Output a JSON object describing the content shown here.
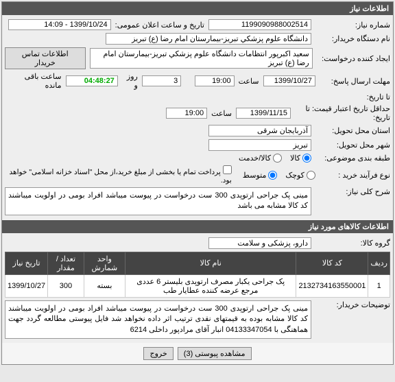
{
  "panel": {
    "title": "اطلاعات نیاز"
  },
  "header": {
    "req_no_label": "شماره نیاز:",
    "req_no": "1199090988002514",
    "pub_date_label": "تاریخ و ساعت اعلان عمومی:",
    "pub_date": "1399/10/24 - 14:09",
    "buyer_label": "نام دستگاه خریدار:",
    "buyer": "دانشگاه علوم پزشکي تبریز-بیمارستان امام رضا (ع) تبریز",
    "creator_label": "ایجاد کننده درخواست:",
    "creator": "سعید اکبرپور انتظامات دانشگاه علوم پزشکي تبریز-بیمارستان امام رضا (ع) تبریز",
    "contact_btn": "اطلاعات تماس خریدار",
    "deadline_label": "مهلت ارسال پاسخ:",
    "deadline_date": "1399/10/27",
    "time_label": "ساعت",
    "deadline_time": "19:00",
    "days_remaining": "3",
    "days_label": "روز و",
    "timer": "04:48:27",
    "remain_label": "ساعت باقی مانده",
    "to_date_label": "تا تاریخ:",
    "valid_label": "حداقل تاریخ اعتبار قیمت: تا تاریخ:",
    "valid_date": "1399/11/15",
    "valid_time": "19:00",
    "province_label": "استان محل تحویل:",
    "province": "آذربایجان شرقی",
    "city_label": "شهر محل تحویل:",
    "city": "تبریز",
    "category_label": "طبقه بندی موضوعی:",
    "cat_goods": "کالا",
    "cat_service": "کالا/خدمت",
    "process_label": "نوع فرآیند خرید :",
    "proc_small": "کوچک",
    "proc_medium": "متوسط",
    "pay_note": "پرداخت تمام یا بخشی از مبلغ خرید،از محل \"اسناد خزانه اسلامی\" خواهد بود."
  },
  "desc": {
    "title_label": "شرح کلی نیاز:",
    "text": "مینی پک جراحی ارتوپدی 300 ست درخواست در پیوست میباشد افراد بومی در اولویت میباشند کد کالا مشابه می باشد"
  },
  "goods": {
    "section_title": "اطلاعات کالاهای مورد نیاز",
    "group_label": "گروه کالا:",
    "group": "دارو، پزشکی و سلامت"
  },
  "table": {
    "headers": [
      "ردیف",
      "کد کالا",
      "نام کالا",
      "واحد شمارش",
      "تعداد / مقدار",
      "تاریخ نیاز"
    ],
    "rows": [
      [
        "1",
        "2132734163550001",
        "پک جراحی یکبار مصرف ارتوپدی بلیستر 6 عددی مرجع عرضه کننده عطایار طب",
        "بسته",
        "300",
        "1399/10/27"
      ]
    ]
  },
  "buyer_notes": {
    "label": "توضیحات خریدار:",
    "text": "مینی پک جراحی ارتوپدی 300 ست درخواست در پیوست میباشد افراد بومی در اولویت میباشند کد کالا مشابه بوده به قیمتهای نقدی ترتیب اثر داده نخواهد شد فایل پیوستی مطالعه گردد جهت هماهنگی با 04133347054 انبار آقای مرادپور داخلی 6214"
  },
  "footer": {
    "attach_btn": "مشاهده پیوستی (3)",
    "exit_btn": "خروج"
  }
}
